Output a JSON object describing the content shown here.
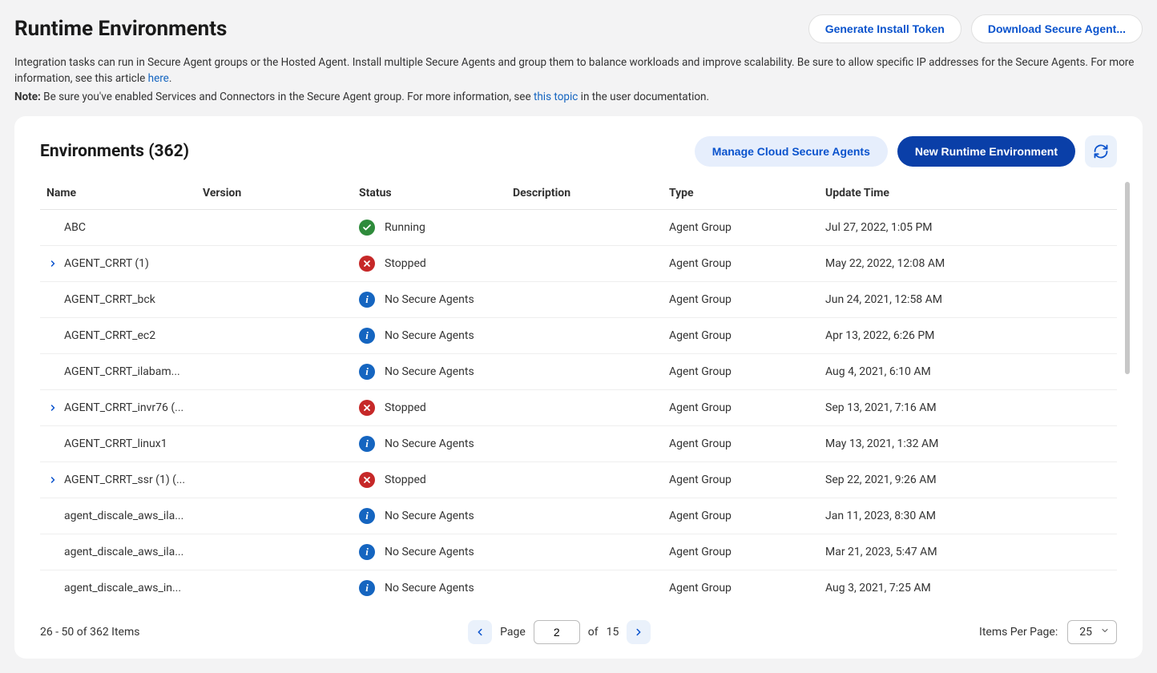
{
  "page": {
    "title": "Runtime Environments",
    "actions": {
      "generate_token": "Generate Install Token",
      "download_agent": "Download Secure Agent..."
    },
    "desc1_a": "Integration tasks can run in Secure Agent groups or the Hosted Agent. Install multiple Secure Agents and group them to balance workloads and improve scalability. Be sure to allow specific IP addresses for the Secure Agents. For more information, see this article ",
    "desc1_link": "here",
    "desc1_b": ".",
    "note_label": "Note:",
    "desc2_a": " Be sure you've enabled Services and Connectors in the Secure Agent group. For more information, see ",
    "desc2_link": "this topic",
    "desc2_b": " in the user documentation."
  },
  "card": {
    "title": "Environments (362)",
    "manage": "Manage Cloud Secure Agents",
    "new_env": "New Runtime Environment"
  },
  "columns": {
    "name": "Name",
    "version": "Version",
    "status": "Status",
    "description": "Description",
    "type": "Type",
    "time": "Update Time"
  },
  "status_labels": {
    "running": "Running",
    "stopped": "Stopped",
    "noagents": "No Secure Agents"
  },
  "rows": [
    {
      "name": "ABC",
      "expandable": false,
      "status": "running",
      "type": "Agent Group",
      "time": "Jul 27, 2022, 1:05 PM"
    },
    {
      "name": "AGENT_CRRT (1)",
      "expandable": true,
      "status": "stopped",
      "type": "Agent Group",
      "time": "May 22, 2022, 12:08 AM"
    },
    {
      "name": "AGENT_CRRT_bck",
      "expandable": false,
      "status": "noagents",
      "type": "Agent Group",
      "time": "Jun 24, 2021, 12:58 AM"
    },
    {
      "name": "AGENT_CRRT_ec2",
      "expandable": false,
      "status": "noagents",
      "type": "Agent Group",
      "time": "Apr 13, 2022, 6:26 PM"
    },
    {
      "name": "AGENT_CRRT_ilabam...",
      "expandable": false,
      "status": "noagents",
      "type": "Agent Group",
      "time": "Aug 4, 2021, 6:10 AM"
    },
    {
      "name": "AGENT_CRRT_invr76 (...",
      "expandable": true,
      "status": "stopped",
      "type": "Agent Group",
      "time": "Sep 13, 2021, 7:16 AM"
    },
    {
      "name": "AGENT_CRRT_linux1",
      "expandable": false,
      "status": "noagents",
      "type": "Agent Group",
      "time": "May 13, 2021, 1:32 AM"
    },
    {
      "name": "AGENT_CRRT_ssr (1) (...",
      "expandable": true,
      "status": "stopped",
      "type": "Agent Group",
      "time": "Sep 22, 2021, 9:26 AM"
    },
    {
      "name": "agent_discale_aws_ila...",
      "expandable": false,
      "status": "noagents",
      "type": "Agent Group",
      "time": "Jan 11, 2023, 8:30 AM"
    },
    {
      "name": "agent_discale_aws_ila...",
      "expandable": false,
      "status": "noagents",
      "type": "Agent Group",
      "time": "Mar 21, 2023, 5:47 AM"
    },
    {
      "name": "agent_discale_aws_in...",
      "expandable": false,
      "status": "noagents",
      "type": "Agent Group",
      "time": "Aug 3, 2021, 7:25 AM"
    }
  ],
  "footer": {
    "range": "26 - 50 of 362 Items",
    "page_label": "Page",
    "page_value": "2",
    "of_label": "of",
    "total_pages": "15",
    "ipp_label": "Items Per Page:",
    "ipp_value": "25"
  }
}
